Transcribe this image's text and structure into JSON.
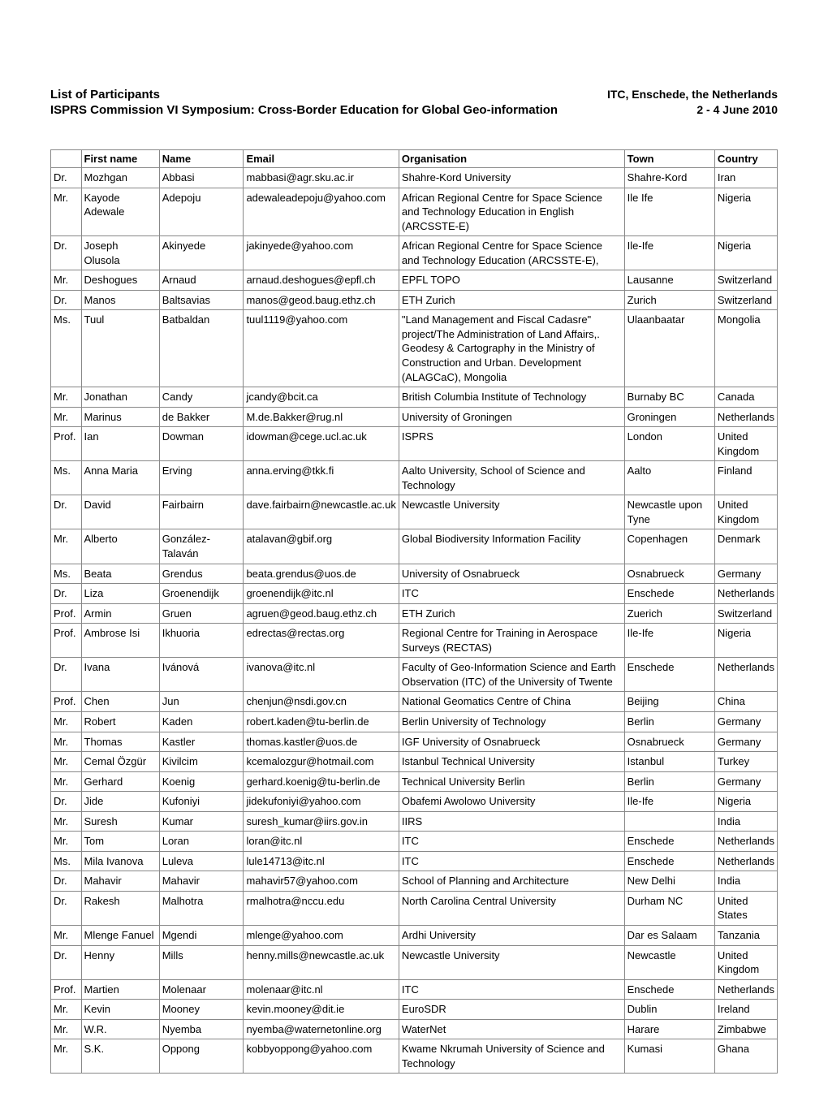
{
  "header": {
    "title": "List of Participants",
    "location": "ITC, Enschede, the Netherlands",
    "subtitle": "ISPRS Commission VI Symposium: Cross-Border Education for Global Geo-information",
    "date": "2 - 4 June 2010"
  },
  "table": {
    "columns": [
      "",
      "First name",
      "Name",
      "Email",
      "Organisation",
      "Town",
      "Country"
    ],
    "rows": [
      [
        "Dr.",
        "Mozhgan",
        "Abbasi",
        "mabbasi@agr.sku.ac.ir",
        "Shahre-Kord University",
        "Shahre-Kord",
        "Iran"
      ],
      [
        "Mr.",
        "Kayode Adewale",
        "Adepoju",
        "adewaleadepoju@yahoo.com",
        "African Regional Centre for Space Science and Technology Education in English (ARCSSTE-E)",
        "Ile Ife",
        "Nigeria"
      ],
      [
        "Dr.",
        "Joseph Olusola",
        "Akinyede",
        "jakinyede@yahoo.com",
        "African Regional Centre for Space Science and Technology Education (ARCSSTE-E),",
        "Ile-Ife",
        "Nigeria"
      ],
      [
        "Mr.",
        "Deshogues",
        "Arnaud",
        "arnaud.deshogues@epfl.ch",
        "EPFL TOPO",
        "Lausanne",
        "Switzerland"
      ],
      [
        "Dr.",
        "Manos",
        "Baltsavias",
        "manos@geod.baug.ethz.ch",
        "ETH Zurich",
        "Zurich",
        "Switzerland"
      ],
      [
        "Ms.",
        "Tuul",
        "Batbaldan",
        "tuul1119@yahoo.com",
        "\"Land Management and Fiscal Cadasre\" project/The Administration of Land Affairs,. Geodesy & Cartography in the Ministry of Construction and Urban. Development (ALAGCaC), Mongolia",
        "Ulaanbaatar",
        "Mongolia"
      ],
      [
        "Mr.",
        "Jonathan",
        "Candy",
        "jcandy@bcit.ca",
        "British Columbia Institute of Technology",
        "Burnaby BC",
        "Canada"
      ],
      [
        "Mr.",
        "Marinus",
        "de Bakker",
        "M.de.Bakker@rug.nl",
        "University of Groningen",
        "Groningen",
        "Netherlands"
      ],
      [
        "Prof.",
        "Ian",
        "Dowman",
        "idowman@cege.ucl.ac.uk",
        "ISPRS",
        "London",
        "United Kingdom"
      ],
      [
        "Ms.",
        "Anna Maria",
        "Erving",
        "anna.erving@tkk.fi",
        "Aalto University, School of Science and Technology",
        "Aalto",
        "Finland"
      ],
      [
        "Dr.",
        "David",
        "Fairbairn",
        "dave.fairbairn@newcastle.ac.uk",
        "Newcastle University",
        "Newcastle upon Tyne",
        "United Kingdom"
      ],
      [
        "Mr.",
        "Alberto",
        "González-Talaván",
        "atalavan@gbif.org",
        "Global Biodiversity Information Facility",
        "Copenhagen",
        "Denmark"
      ],
      [
        "Ms.",
        "Beata",
        "Grendus",
        "beata.grendus@uos.de",
        "University of Osnabrueck",
        "Osnabrueck",
        "Germany"
      ],
      [
        "Dr.",
        "Liza",
        "Groenendijk",
        "groenendijk@itc.nl",
        "ITC",
        "Enschede",
        "Netherlands"
      ],
      [
        "Prof.",
        "Armin",
        "Gruen",
        "agruen@geod.baug.ethz.ch",
        "ETH Zurich",
        "Zuerich",
        "Switzerland"
      ],
      [
        "Prof.",
        "Ambrose Isi",
        "Ikhuoria",
        "edrectas@rectas.org",
        "Regional Centre for Training in Aerospace Surveys (RECTAS)",
        "Ile-Ife",
        "Nigeria"
      ],
      [
        "Dr.",
        "Ivana",
        "Ivánová",
        "ivanova@itc.nl",
        "Faculty of Geo-Information Science and Earth Observation (ITC) of the University of Twente",
        "Enschede",
        "Netherlands"
      ],
      [
        "Prof.",
        "Chen",
        "Jun",
        "chenjun@nsdi.gov.cn",
        "National Geomatics Centre of China",
        "Beijing",
        "China"
      ],
      [
        "Mr.",
        "Robert",
        "Kaden",
        "robert.kaden@tu-berlin.de",
        "Berlin University of Technology",
        "Berlin",
        "Germany"
      ],
      [
        "Mr.",
        "Thomas",
        "Kastler",
        "thomas.kastler@uos.de",
        "IGF University of Osnabrueck",
        "Osnabrueck",
        "Germany"
      ],
      [
        "Mr.",
        "Cemal Özgür",
        "Kivilcim",
        "kcemalozgur@hotmail.com",
        "Istanbul Technical University",
        "Istanbul",
        "Turkey"
      ],
      [
        "Mr.",
        "Gerhard",
        "Koenig",
        "gerhard.koenig@tu-berlin.de",
        "Technical University Berlin",
        "Berlin",
        "Germany"
      ],
      [
        "Dr.",
        "Jide",
        "Kufoniyi",
        "jidekufoniyi@yahoo.com",
        "Obafemi Awolowo University",
        "Ile-Ife",
        "Nigeria"
      ],
      [
        "Mr.",
        "Suresh",
        "Kumar",
        "suresh_kumar@iirs.gov.in",
        "IIRS",
        "",
        "India"
      ],
      [
        "Mr.",
        "Tom",
        "Loran",
        "loran@itc.nl",
        "ITC",
        "Enschede",
        "Netherlands"
      ],
      [
        "Ms.",
        "Mila Ivanova",
        "Luleva",
        "lule14713@itc.nl",
        "ITC",
        "Enschede",
        "Netherlands"
      ],
      [
        "Dr.",
        "Mahavir",
        "Mahavir",
        "mahavir57@yahoo.com",
        "School of Planning and Architecture",
        "New Delhi",
        "India"
      ],
      [
        "Dr.",
        "Rakesh",
        "Malhotra",
        "rmalhotra@nccu.edu",
        "North Carolina Central University",
        "Durham NC",
        "United States"
      ],
      [
        "Mr.",
        "Mlenge Fanuel",
        "Mgendi",
        "mlenge@yahoo.com",
        "Ardhi University",
        "Dar es Salaam",
        "Tanzania"
      ],
      [
        "Dr.",
        "Henny",
        "Mills",
        "henny.mills@newcastle.ac.uk",
        "Newcastle University",
        "Newcastle",
        "United Kingdom"
      ],
      [
        "Prof.",
        "Martien",
        "Molenaar",
        "molenaar@itc.nl",
        "ITC",
        "Enschede",
        "Netherlands"
      ],
      [
        "Mr.",
        "Kevin",
        "Mooney",
        "kevin.mooney@dit.ie",
        "EuroSDR",
        "Dublin",
        "Ireland"
      ],
      [
        "Mr.",
        "W.R.",
        "Nyemba",
        "nyemba@waternetonline.org",
        "WaterNet",
        "Harare",
        "Zimbabwe"
      ],
      [
        "Mr.",
        "S.K.",
        "Oppong",
        "kobbyoppong@yahoo.com",
        "Kwame Nkrumah University of Science and Technology",
        "Kumasi",
        "Ghana"
      ]
    ]
  },
  "styling": {
    "background_color": "#ffffff",
    "border_color": "#888888",
    "text_color": "#000000",
    "title_fontsize": 15,
    "header_fontsize": 14,
    "table_fontsize": 13,
    "font_family": "Arial"
  }
}
